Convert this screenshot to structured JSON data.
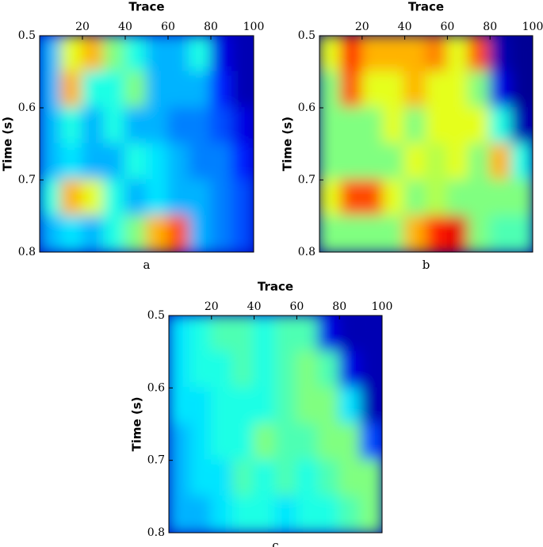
{
  "chart_data": [
    {
      "type": "heatmap",
      "xlabel": "Trace",
      "ylabel": "Time (s)",
      "caption": "a",
      "colormap": "jet",
      "xlim": [
        0,
        100
      ],
      "xticks": [
        20,
        40,
        60,
        80,
        100
      ],
      "ylim": [
        0.5,
        0.8
      ],
      "yticks": [
        0.5,
        0.6,
        0.7,
        0.8
      ],
      "zlim": [
        0,
        1
      ],
      "values": [
        [
          0.3,
          0.6,
          0.7,
          0.5,
          0.4,
          0.3,
          0.3,
          0.4,
          0.1,
          0.05
        ],
        [
          0.3,
          0.7,
          0.4,
          0.4,
          0.5,
          0.3,
          0.3,
          0.3,
          0.15,
          0.05
        ],
        [
          0.3,
          0.4,
          0.3,
          0.4,
          0.3,
          0.3,
          0.25,
          0.25,
          0.2,
          0.1
        ],
        [
          0.3,
          0.35,
          0.3,
          0.3,
          0.4,
          0.35,
          0.3,
          0.25,
          0.25,
          0.15
        ],
        [
          0.4,
          0.7,
          0.6,
          0.4,
          0.3,
          0.35,
          0.3,
          0.3,
          0.25,
          0.2
        ],
        [
          0.3,
          0.35,
          0.3,
          0.4,
          0.5,
          0.7,
          0.8,
          0.3,
          0.25,
          0.2
        ]
      ]
    },
    {
      "type": "heatmap",
      "xlabel": "Trace",
      "ylabel": "Time (s)",
      "caption": "b",
      "colormap": "jet",
      "xlim": [
        0,
        100
      ],
      "xticks": [
        20,
        40,
        60,
        80,
        100
      ],
      "ylim": [
        0.5,
        0.8
      ],
      "yticks": [
        0.5,
        0.6,
        0.7,
        0.8
      ],
      "zlim": [
        0,
        1
      ],
      "values": [
        [
          0.6,
          0.85,
          0.7,
          0.7,
          0.7,
          0.75,
          0.6,
          0.8,
          0.05,
          0.02
        ],
        [
          0.5,
          0.8,
          0.6,
          0.6,
          0.7,
          0.6,
          0.6,
          0.5,
          0.1,
          0.02
        ],
        [
          0.5,
          0.5,
          0.5,
          0.6,
          0.5,
          0.6,
          0.6,
          0.6,
          0.4,
          0.05
        ],
        [
          0.5,
          0.5,
          0.5,
          0.5,
          0.6,
          0.55,
          0.6,
          0.5,
          0.7,
          0.4
        ],
        [
          0.6,
          0.8,
          0.8,
          0.6,
          0.5,
          0.55,
          0.5,
          0.5,
          0.5,
          0.5
        ],
        [
          0.5,
          0.5,
          0.5,
          0.5,
          0.7,
          0.85,
          0.9,
          0.5,
          0.45,
          0.45
        ]
      ]
    },
    {
      "type": "heatmap",
      "xlabel": "Trace",
      "ylabel": "Time (s)",
      "caption": "c",
      "colormap": "jet",
      "xlim": [
        0,
        100
      ],
      "xticks": [
        20,
        40,
        60,
        80,
        100
      ],
      "ylim": [
        0.5,
        0.8
      ],
      "yticks": [
        0.5,
        0.6,
        0.7,
        0.8
      ],
      "zlim": [
        0,
        1
      ],
      "values": [
        [
          0.35,
          0.4,
          0.45,
          0.45,
          0.4,
          0.45,
          0.45,
          0.1,
          0.05,
          0.05
        ],
        [
          0.35,
          0.4,
          0.4,
          0.45,
          0.4,
          0.45,
          0.5,
          0.45,
          0.1,
          0.05
        ],
        [
          0.35,
          0.35,
          0.4,
          0.4,
          0.4,
          0.45,
          0.5,
          0.5,
          0.35,
          0.05
        ],
        [
          0.3,
          0.35,
          0.4,
          0.4,
          0.5,
          0.45,
          0.45,
          0.5,
          0.5,
          0.2
        ],
        [
          0.3,
          0.35,
          0.35,
          0.45,
          0.4,
          0.45,
          0.4,
          0.45,
          0.5,
          0.5
        ],
        [
          0.3,
          0.3,
          0.35,
          0.4,
          0.4,
          0.35,
          0.4,
          0.4,
          0.45,
          0.5
        ]
      ]
    }
  ]
}
